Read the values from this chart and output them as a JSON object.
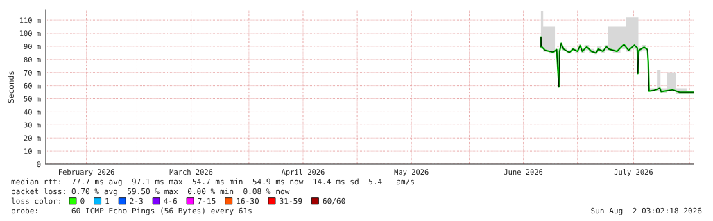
{
  "chart_data": {
    "type": "line",
    "ylabel": "Seconds",
    "xlim": [
      "2026-02-03T18:00",
      "2026-08-02T03:00"
    ],
    "xticks": [
      {
        "value": "2026-03-01",
        "label": null
      },
      {
        "value": "2026-04-01",
        "label": null
      },
      {
        "value": "2026-05-01",
        "label": null
      },
      {
        "value": "2026-06-01",
        "label": null
      },
      {
        "value": "2026-07-01",
        "label": null
      },
      {
        "value": "2026-08-01",
        "label": null
      },
      {
        "value": "2026-02-15",
        "label": "February 2026"
      },
      {
        "value": "2026-03-16",
        "label": "March 2026"
      },
      {
        "value": "2026-04-16",
        "label": "April 2026"
      },
      {
        "value": "2026-05-16",
        "label": "May 2026"
      },
      {
        "value": "2026-06-16",
        "label": "June 2026"
      },
      {
        "value": "2026-07-16T12:00",
        "label": "July 2026"
      }
    ],
    "ylim": [
      0,
      118
    ],
    "yticks": [
      0,
      {
        "value": 10,
        "label": "10 m"
      },
      {
        "value": 20,
        "label": "20 m"
      },
      {
        "value": 30,
        "label": "30 m"
      },
      {
        "value": 40,
        "label": "40 m"
      },
      {
        "value": 50,
        "label": "50 m"
      },
      {
        "value": 60,
        "label": "60 m"
      },
      {
        "value": 70,
        "label": "70 m"
      },
      {
        "value": 80,
        "label": "80 m"
      },
      {
        "value": 90,
        "label": "90 m"
      },
      {
        "value": 100,
        "label": "100 m"
      },
      {
        "value": 110,
        "label": "110 m"
      }
    ],
    "grid": true,
    "legend": "bottom left",
    "legend_title": "loss color:",
    "x": [
      "2026-06-20T20:00",
      "2026-06-20T21:00",
      "2026-06-20T23:30",
      "2026-06-22T00:00",
      "2026-06-24T06:00",
      "2026-06-25T05:00",
      "2026-06-25T20:00",
      "2026-06-26T01:00",
      "2026-06-26T12:00",
      "2026-06-27T03:00",
      "2026-06-28T18:00",
      "2026-06-29T17:00",
      "2026-07-01T00:00",
      "2026-07-01T18:00",
      "2026-07-02T07:00",
      "2026-07-03T13:00",
      "2026-07-04T20:00",
      "2026-07-06T03:00",
      "2026-07-06T18:00",
      "2026-07-08T01:00",
      "2026-07-09T00:00",
      "2026-07-09T16:00",
      "2026-07-11T22:00",
      "2026-07-13T20:00",
      "2026-07-15T03:00",
      "2026-07-16T17:00",
      "2026-07-17T13:00",
      "2026-07-17T17:00",
      "2026-07-18T00:00",
      "2026-07-19T10:00",
      "2026-07-20T09:00",
      "2026-07-20T14:00",
      "2026-07-20T19:00",
      "2026-07-22T04:00",
      "2026-07-23T19:00",
      "2026-07-24T03:00",
      "2026-07-27T08:00",
      "2026-07-29T06:00",
      "2026-08-02T03:00"
    ],
    "series": [
      {
        "color": "#00d000",
        "values": [
          89.6,
          97,
          90,
          87.0,
          85.6,
          87.5,
          59,
          86.2,
          92.3,
          87.9,
          85.3,
          87.9,
          86.2,
          90.5,
          86.2,
          89.6,
          86.2,
          84.9,
          87.9,
          86.2,
          89.6,
          87.9,
          86.2,
          91.4,
          87.0,
          90.9,
          88.8,
          69.1,
          87.0,
          89.3,
          87.5,
          78.3,
          55.8,
          56.3,
          58.1,
          55.4,
          56.7,
          54.9,
          54.9
        ],
        "lower": [
          88,
          89,
          88,
          86,
          84.5,
          86,
          59,
          85,
          88,
          86.5,
          84.5,
          86.5,
          85,
          87,
          85,
          87,
          85,
          84,
          86,
          85,
          87,
          86.5,
          85,
          88,
          86,
          88,
          87,
          69.1,
          86,
          87,
          86.5,
          78.3,
          55.8,
          55.5,
          55.5,
          54.5,
          55.5,
          54,
          54
        ],
        "upper": [
          100,
          117,
          117,
          105,
          105,
          88,
          88,
          88,
          93,
          89,
          87,
          89,
          88,
          92,
          88,
          91,
          88,
          87,
          90,
          88,
          91,
          105,
          105,
          105,
          112,
          112,
          112,
          112,
          89,
          91,
          89,
          80,
          58,
          58,
          72,
          58,
          70,
          58,
          56
        ]
      },
      {
        "name": "0",
        "color": "#26ff00",
        "values": [
          null,
          null,
          null,
          null,
          null,
          null,
          null,
          null,
          null,
          null,
          null,
          null,
          null,
          null,
          null,
          null,
          null,
          null,
          null,
          null,
          null,
          null,
          null,
          null,
          null,
          null,
          null,
          null,
          null,
          null,
          null,
          null,
          null,
          null,
          null,
          null,
          null,
          null,
          null
        ]
      },
      {
        "name": "1",
        "color": "#00b8ff",
        "values": [
          null,
          null,
          null,
          null,
          null,
          null,
          null,
          null,
          null,
          null,
          null,
          null,
          null,
          null,
          null,
          null,
          null,
          null,
          null,
          null,
          null,
          null,
          null,
          null,
          null,
          null,
          null,
          null,
          null,
          null,
          null,
          null,
          null,
          null,
          null,
          null,
          null,
          null,
          null
        ]
      },
      {
        "name": "2-3",
        "color": "#0059ff",
        "values": [
          null,
          null,
          null,
          null,
          null,
          null,
          null,
          null,
          null,
          null,
          null,
          null,
          null,
          null,
          null,
          null,
          null,
          null,
          null,
          null,
          null,
          null,
          null,
          null,
          null,
          null,
          null,
          null,
          null,
          null,
          null,
          null,
          null,
          null,
          null,
          null,
          null,
          null,
          null
        ]
      },
      {
        "name": "4-6",
        "color": "#7e00ff",
        "values": [
          null,
          null,
          null,
          null,
          null,
          null,
          null,
          null,
          null,
          null,
          null,
          null,
          null,
          null,
          null,
          null,
          null,
          null,
          null,
          null,
          null,
          null,
          null,
          null,
          null,
          null,
          null,
          null,
          null,
          null,
          null,
          null,
          null,
          null,
          null,
          null,
          null,
          null,
          null
        ]
      },
      {
        "name": "7-15",
        "color": "#ff00ff",
        "values": [
          null,
          null,
          null,
          null,
          null,
          null,
          null,
          null,
          null,
          null,
          null,
          null,
          null,
          null,
          null,
          null,
          null,
          null,
          null,
          null,
          null,
          null,
          null,
          null,
          null,
          null,
          null,
          null,
          null,
          null,
          null,
          null,
          null,
          null,
          null,
          null,
          null,
          null,
          null
        ]
      },
      {
        "name": "16-30",
        "color": "#ff5500",
        "values": [
          null,
          null,
          null,
          null,
          null,
          null,
          null,
          null,
          null,
          null,
          null,
          null,
          null,
          null,
          null,
          null,
          null,
          null,
          null,
          null,
          null,
          null,
          null,
          null,
          null,
          null,
          null,
          null,
          null,
          null,
          null,
          null,
          null,
          null,
          null,
          null,
          null,
          null,
          null
        ]
      },
      {
        "name": "31-59",
        "color": "#ff0000",
        "values": [
          null,
          null,
          null,
          null,
          null,
          null,
          null,
          null,
          null,
          null,
          null,
          null,
          null,
          null,
          null,
          null,
          null,
          null,
          null,
          null,
          null,
          null,
          null,
          null,
          null,
          null,
          null,
          null,
          null,
          null,
          null,
          null,
          null,
          null,
          null,
          null,
          null,
          null,
          null
        ]
      },
      {
        "name": "60/60",
        "color": "#a10000",
        "values": [
          null,
          null,
          null,
          null,
          null,
          null,
          null,
          null,
          null,
          null,
          null,
          null,
          null,
          null,
          null,
          null,
          null,
          null,
          null,
          null,
          null,
          null,
          null,
          null,
          null,
          null,
          null,
          null,
          null,
          null,
          null,
          null,
          null,
          null,
          null,
          null,
          null,
          null,
          null
        ]
      }
    ],
    "annotations": [
      "median rtt:  77.7 ms avg  97.1 ms max  54.7 ms min  54.9 ms now  14.4 ms sd  5.4   am/s",
      "packet loss: 0.70 % avg  59.50 % max  0.00 % min  0.08 % now",
      "probe:       60 ICMP Echo Pings (56 Bytes) every 61s",
      "Sun Aug  2 03:02:18 2026"
    ]
  }
}
